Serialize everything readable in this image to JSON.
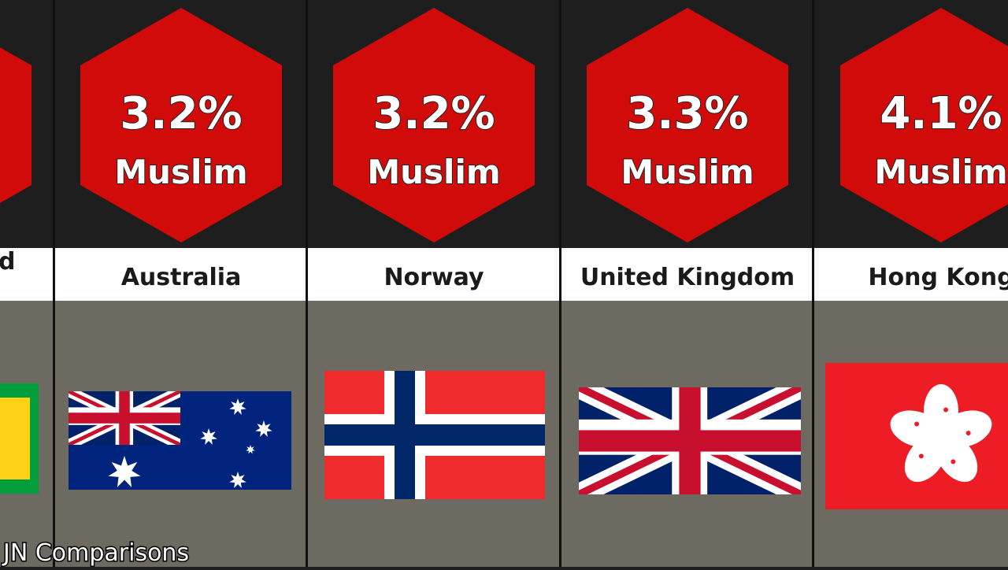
{
  "partial_column": {
    "label_fragment": "d"
  },
  "columns": [
    {
      "percent": "3.2%",
      "religion": "Muslim",
      "country": "Australia"
    },
    {
      "percent": "3.2%",
      "religion": "Muslim",
      "country": "Norway"
    },
    {
      "percent": "3.3%",
      "religion": "Muslim",
      "country": "United Kingdom"
    },
    {
      "percent": "4.1%",
      "religion": "Muslim",
      "country": "Hong Kong"
    }
  ],
  "watermark": "JN Comparisons"
}
